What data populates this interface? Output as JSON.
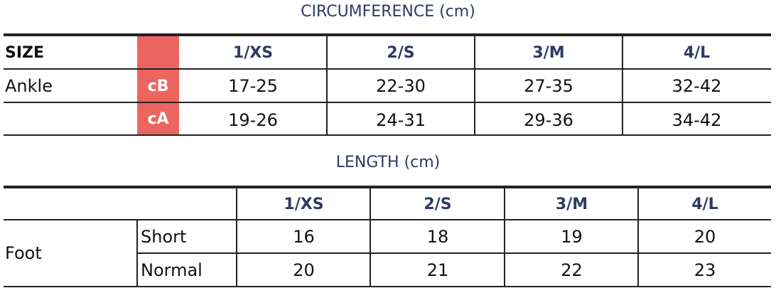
{
  "circumference": {
    "title": "CIRCUMFERENCE (cm)",
    "size_label": "SIZE",
    "sizes": [
      "1/XS",
      "2/S",
      "3/M",
      "4/L"
    ],
    "body_part": "Ankle",
    "accent_color": "#ec6661",
    "rows": [
      {
        "tag": "cB",
        "values": [
          "17-25",
          "22-30",
          "27-35",
          "32-42"
        ]
      },
      {
        "tag": "cA",
        "values": [
          "19-26",
          "24-31",
          "29-36",
          "34-42"
        ]
      }
    ]
  },
  "length": {
    "title": "LENGTH (cm)",
    "sizes": [
      "1/XS",
      "2/S",
      "3/M",
      "4/L"
    ],
    "body_part": "Foot",
    "rows": [
      {
        "label": "Short",
        "values": [
          "16",
          "18",
          "19",
          "20"
        ]
      },
      {
        "label": "Normal",
        "values": [
          "20",
          "21",
          "22",
          "23"
        ]
      }
    ]
  }
}
